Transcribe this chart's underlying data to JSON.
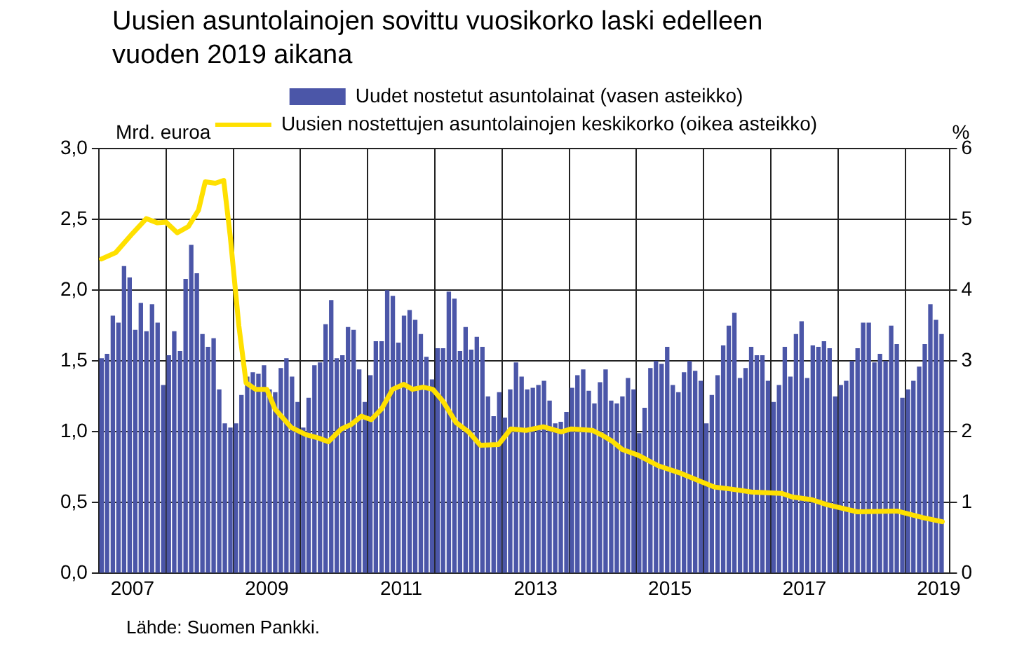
{
  "chart_data": {
    "type": "bar",
    "title": "Uusien asuntolainojen sovittu vuosikorko laski edelleen vuoden 2019 aikana",
    "ylabel": "Mrd. euroa",
    "y2label": "%",
    "annotations": [
      "Lähde: Suomen Pankki."
    ],
    "x": [
      "2007-01-16",
      "2007-02-15",
      "2007-03-16",
      "2007-04-16",
      "2007-05-16",
      "2007-06-16",
      "2007-07-16",
      "2007-08-16",
      "2007-09-16",
      "2007-10-16",
      "2007-11-16",
      "2007-12-16",
      "2008-01-16",
      "2008-02-15",
      "2008-03-16",
      "2008-04-16",
      "2008-05-16",
      "2008-06-16",
      "2008-07-16",
      "2008-08-16",
      "2008-09-16",
      "2008-10-16",
      "2008-11-16",
      "2008-12-16",
      "2009-01-16",
      "2009-02-15",
      "2009-03-16",
      "2009-04-16",
      "2009-05-16",
      "2009-06-16",
      "2009-07-16",
      "2009-08-16",
      "2009-09-16",
      "2009-10-16",
      "2009-11-16",
      "2009-12-16",
      "2010-01-16",
      "2010-02-15",
      "2010-03-16",
      "2010-04-16",
      "2010-05-16",
      "2010-06-16",
      "2010-07-16",
      "2010-08-16",
      "2010-09-16",
      "2010-10-16",
      "2010-11-16",
      "2010-12-16",
      "2011-01-16",
      "2011-02-15",
      "2011-03-16",
      "2011-04-16",
      "2011-05-16",
      "2011-06-16",
      "2011-07-16",
      "2011-08-16",
      "2011-09-16",
      "2011-10-16",
      "2011-11-16",
      "2011-12-16",
      "2012-01-16",
      "2012-02-15",
      "2012-03-16",
      "2012-04-16",
      "2012-05-16",
      "2012-06-16",
      "2012-07-16",
      "2012-08-16",
      "2012-09-16",
      "2012-10-16",
      "2012-11-16",
      "2012-12-16",
      "2013-01-16",
      "2013-02-15",
      "2013-03-16",
      "2013-04-16",
      "2013-05-16",
      "2013-06-16",
      "2013-07-16",
      "2013-08-16",
      "2013-09-16",
      "2013-10-16",
      "2013-11-16",
      "2013-12-16",
      "2014-01-16",
      "2014-02-15",
      "2014-03-16",
      "2014-04-16",
      "2014-05-16",
      "2014-06-16",
      "2014-07-16",
      "2014-08-16",
      "2014-09-16",
      "2014-10-16",
      "2014-11-16",
      "2014-12-16",
      "2015-01-16",
      "2015-02-15",
      "2015-03-16",
      "2015-04-16",
      "2015-05-16",
      "2015-06-16",
      "2015-07-16",
      "2015-08-16",
      "2015-09-16",
      "2015-10-16",
      "2015-11-16",
      "2015-12-16",
      "2016-01-16",
      "2016-02-15",
      "2016-03-16",
      "2016-04-16",
      "2016-05-16",
      "2016-06-16",
      "2016-07-16",
      "2016-08-16",
      "2016-09-16",
      "2016-10-16",
      "2016-11-16",
      "2016-12-16",
      "2017-01-16",
      "2017-02-15",
      "2017-03-16",
      "2017-04-16",
      "2017-05-16",
      "2017-06-16",
      "2017-07-16",
      "2017-08-16",
      "2017-09-16",
      "2017-10-16",
      "2017-11-16",
      "2017-12-16",
      "2018-01-16",
      "2018-02-15",
      "2018-03-16",
      "2018-04-16",
      "2018-05-16",
      "2018-06-16",
      "2018-07-16",
      "2018-08-16",
      "2018-09-16",
      "2018-10-16",
      "2018-11-16",
      "2018-12-16",
      "2019-01-16",
      "2019-02-15",
      "2019-03-16",
      "2019-04-16",
      "2019-05-16",
      "2019-06-16",
      "2019-07-16"
    ],
    "series": [
      {
        "name": "Uudet nostetut asuntolainat (vasen asteikko)",
        "color": "#4b56a8",
        "values": [
          1.52,
          1.55,
          1.82,
          1.77,
          2.17,
          2.09,
          1.72,
          1.91,
          1.71,
          1.9,
          1.77,
          1.33,
          1.54,
          1.71,
          1.57,
          2.08,
          2.32,
          2.12,
          1.69,
          1.6,
          1.66,
          1.3,
          1.06,
          1.03,
          1.06,
          1.26,
          1.39,
          1.42,
          1.41,
          1.47,
          1.3,
          1.28,
          1.45,
          1.52,
          1.39,
          1.21,
          1.03,
          1.24,
          1.47,
          1.49,
          1.76,
          1.93,
          1.52,
          1.54,
          1.74,
          1.72,
          1.44,
          1.21,
          1.4,
          1.64,
          1.64,
          2.0,
          1.96,
          1.63,
          1.82,
          1.86,
          1.79,
          1.69,
          1.53,
          1.37,
          1.59,
          1.59,
          1.99,
          1.94,
          1.57,
          1.74,
          1.58,
          1.67,
          1.6,
          1.25,
          1.11,
          1.28,
          1.1,
          1.3,
          1.49,
          1.39,
          1.3,
          1.31,
          1.33,
          1.36,
          1.22,
          1.06,
          1.07,
          1.14,
          1.31,
          1.4,
          1.44,
          1.29,
          1.2,
          1.35,
          1.44,
          1.22,
          1.2,
          1.25,
          1.38,
          1.3,
          0.99,
          1.17,
          1.45,
          1.5,
          1.48,
          1.6,
          1.33,
          1.28,
          1.42,
          1.5,
          1.43,
          1.36,
          1.06,
          1.26,
          1.4,
          1.61,
          1.75,
          1.84,
          1.38,
          1.45,
          1.6,
          1.54,
          1.54,
          1.36,
          1.21,
          1.33,
          1.6,
          1.39,
          1.69,
          1.78,
          1.38,
          1.61,
          1.6,
          1.64,
          1.59,
          1.25,
          1.33,
          1.36,
          1.5,
          1.59,
          1.77,
          1.77,
          1.49,
          1.55,
          1.5,
          1.75,
          1.62,
          1.24,
          1.3,
          1.36,
          1.46,
          1.62,
          1.9,
          1.79,
          1.69
        ]
      },
      {
        "name": "Uusien nostettujen asuntolainojen keskikorko (oikea asteikko)",
        "type": "line",
        "axis": "y2",
        "color": "#ffe000",
        "x": [
          "2007-01-15",
          "2007-04-01",
          "2007-07-01",
          "2007-09-15",
          "2007-11-15",
          "2008-01-01",
          "2008-03-01",
          "2008-05-01",
          "2008-06-25",
          "2008-08-01",
          "2008-09-25",
          "2008-11-10",
          "2008-12-15",
          "2009-02-01",
          "2009-03-10",
          "2009-05-01",
          "2009-07-01",
          "2009-08-15",
          "2009-11-12",
          "2010-02-01",
          "2010-04-10",
          "2010-06-01",
          "2010-08-10",
          "2010-10-01",
          "2010-11-28",
          "2011-01-20",
          "2011-03-15",
          "2011-05-15",
          "2011-07-15",
          "2011-09-01",
          "2011-10-28",
          "2011-12-20",
          "2012-02-15",
          "2012-04-25",
          "2012-07-01",
          "2012-09-05",
          "2012-12-12",
          "2013-02-18",
          "2013-05-10",
          "2013-08-12",
          "2013-11-18",
          "2014-01-12",
          "2014-05-05",
          "2014-06-28",
          "2014-08-20",
          "2014-10-15",
          "2015-01-10",
          "2015-04-28",
          "2015-09-03",
          "2015-11-25",
          "2016-02-28",
          "2016-06-01",
          "2016-09-18",
          "2017-03-01",
          "2017-04-25",
          "2017-08-12",
          "2017-11-03",
          "2018-04-15",
          "2018-11-18",
          "2019-04-03",
          "2019-07-20"
        ],
        "values": [
          4.44,
          4.53,
          4.8,
          5.01,
          4.95,
          4.96,
          4.81,
          4.9,
          5.13,
          5.53,
          5.51,
          5.55,
          4.76,
          3.5,
          2.69,
          2.6,
          2.6,
          2.32,
          2.06,
          1.96,
          1.91,
          1.86,
          2.04,
          2.1,
          2.22,
          2.17,
          2.32,
          2.6,
          2.67,
          2.6,
          2.63,
          2.6,
          2.43,
          2.13,
          2.0,
          1.81,
          1.82,
          2.04,
          2.02,
          2.07,
          2.0,
          2.04,
          2.02,
          1.95,
          1.87,
          1.75,
          1.67,
          1.52,
          1.41,
          1.32,
          1.22,
          1.19,
          1.15,
          1.13,
          1.08,
          1.04,
          0.97,
          0.87,
          0.88,
          0.79,
          0.73
        ]
      }
    ],
    "xlim": [
      "2007-01-01",
      "2019-09-01"
    ],
    "xticks": [
      {
        "value": "2007-07-01",
        "label": "2007"
      },
      {
        "value": "2008-01-01",
        "label": null
      },
      {
        "value": "2009-01-01",
        "label": null
      },
      {
        "value": "2009-07-01",
        "label": "2009"
      },
      {
        "value": "2010-01-01",
        "label": null
      },
      {
        "value": "2011-01-01",
        "label": null
      },
      {
        "value": "2011-07-01",
        "label": "2011"
      },
      {
        "value": "2012-01-01",
        "label": null
      },
      {
        "value": "2013-01-01",
        "label": null
      },
      {
        "value": "2013-07-01",
        "label": "2013"
      },
      {
        "value": "2014-01-01",
        "label": null
      },
      {
        "value": "2015-01-01",
        "label": null
      },
      {
        "value": "2015-07-01",
        "label": "2015"
      },
      {
        "value": "2016-01-01",
        "label": null
      },
      {
        "value": "2017-01-01",
        "label": null
      },
      {
        "value": "2017-07-01",
        "label": "2017"
      },
      {
        "value": "2018-01-01",
        "label": null
      },
      {
        "value": "2019-01-01",
        "label": null
      },
      {
        "value": "2019-07-01",
        "label": "2019"
      }
    ],
    "ylim": [
      0,
      3
    ],
    "yticks": [
      {
        "value": 0,
        "label": "0,0"
      },
      {
        "value": 0.5,
        "label": "0,5"
      },
      {
        "value": 1,
        "label": "1,0"
      },
      {
        "value": 1.5,
        "label": "1,5"
      },
      {
        "value": 2,
        "label": "2,0"
      },
      {
        "value": 2.5,
        "label": "2,5"
      },
      {
        "value": 3,
        "label": "3,0"
      }
    ],
    "y2lim": [
      0,
      6
    ],
    "y2ticks": [
      0,
      1,
      2,
      3,
      4,
      5,
      6
    ],
    "grid": true,
    "legend": "top",
    "marker": "none",
    "line_style": "solid"
  }
}
